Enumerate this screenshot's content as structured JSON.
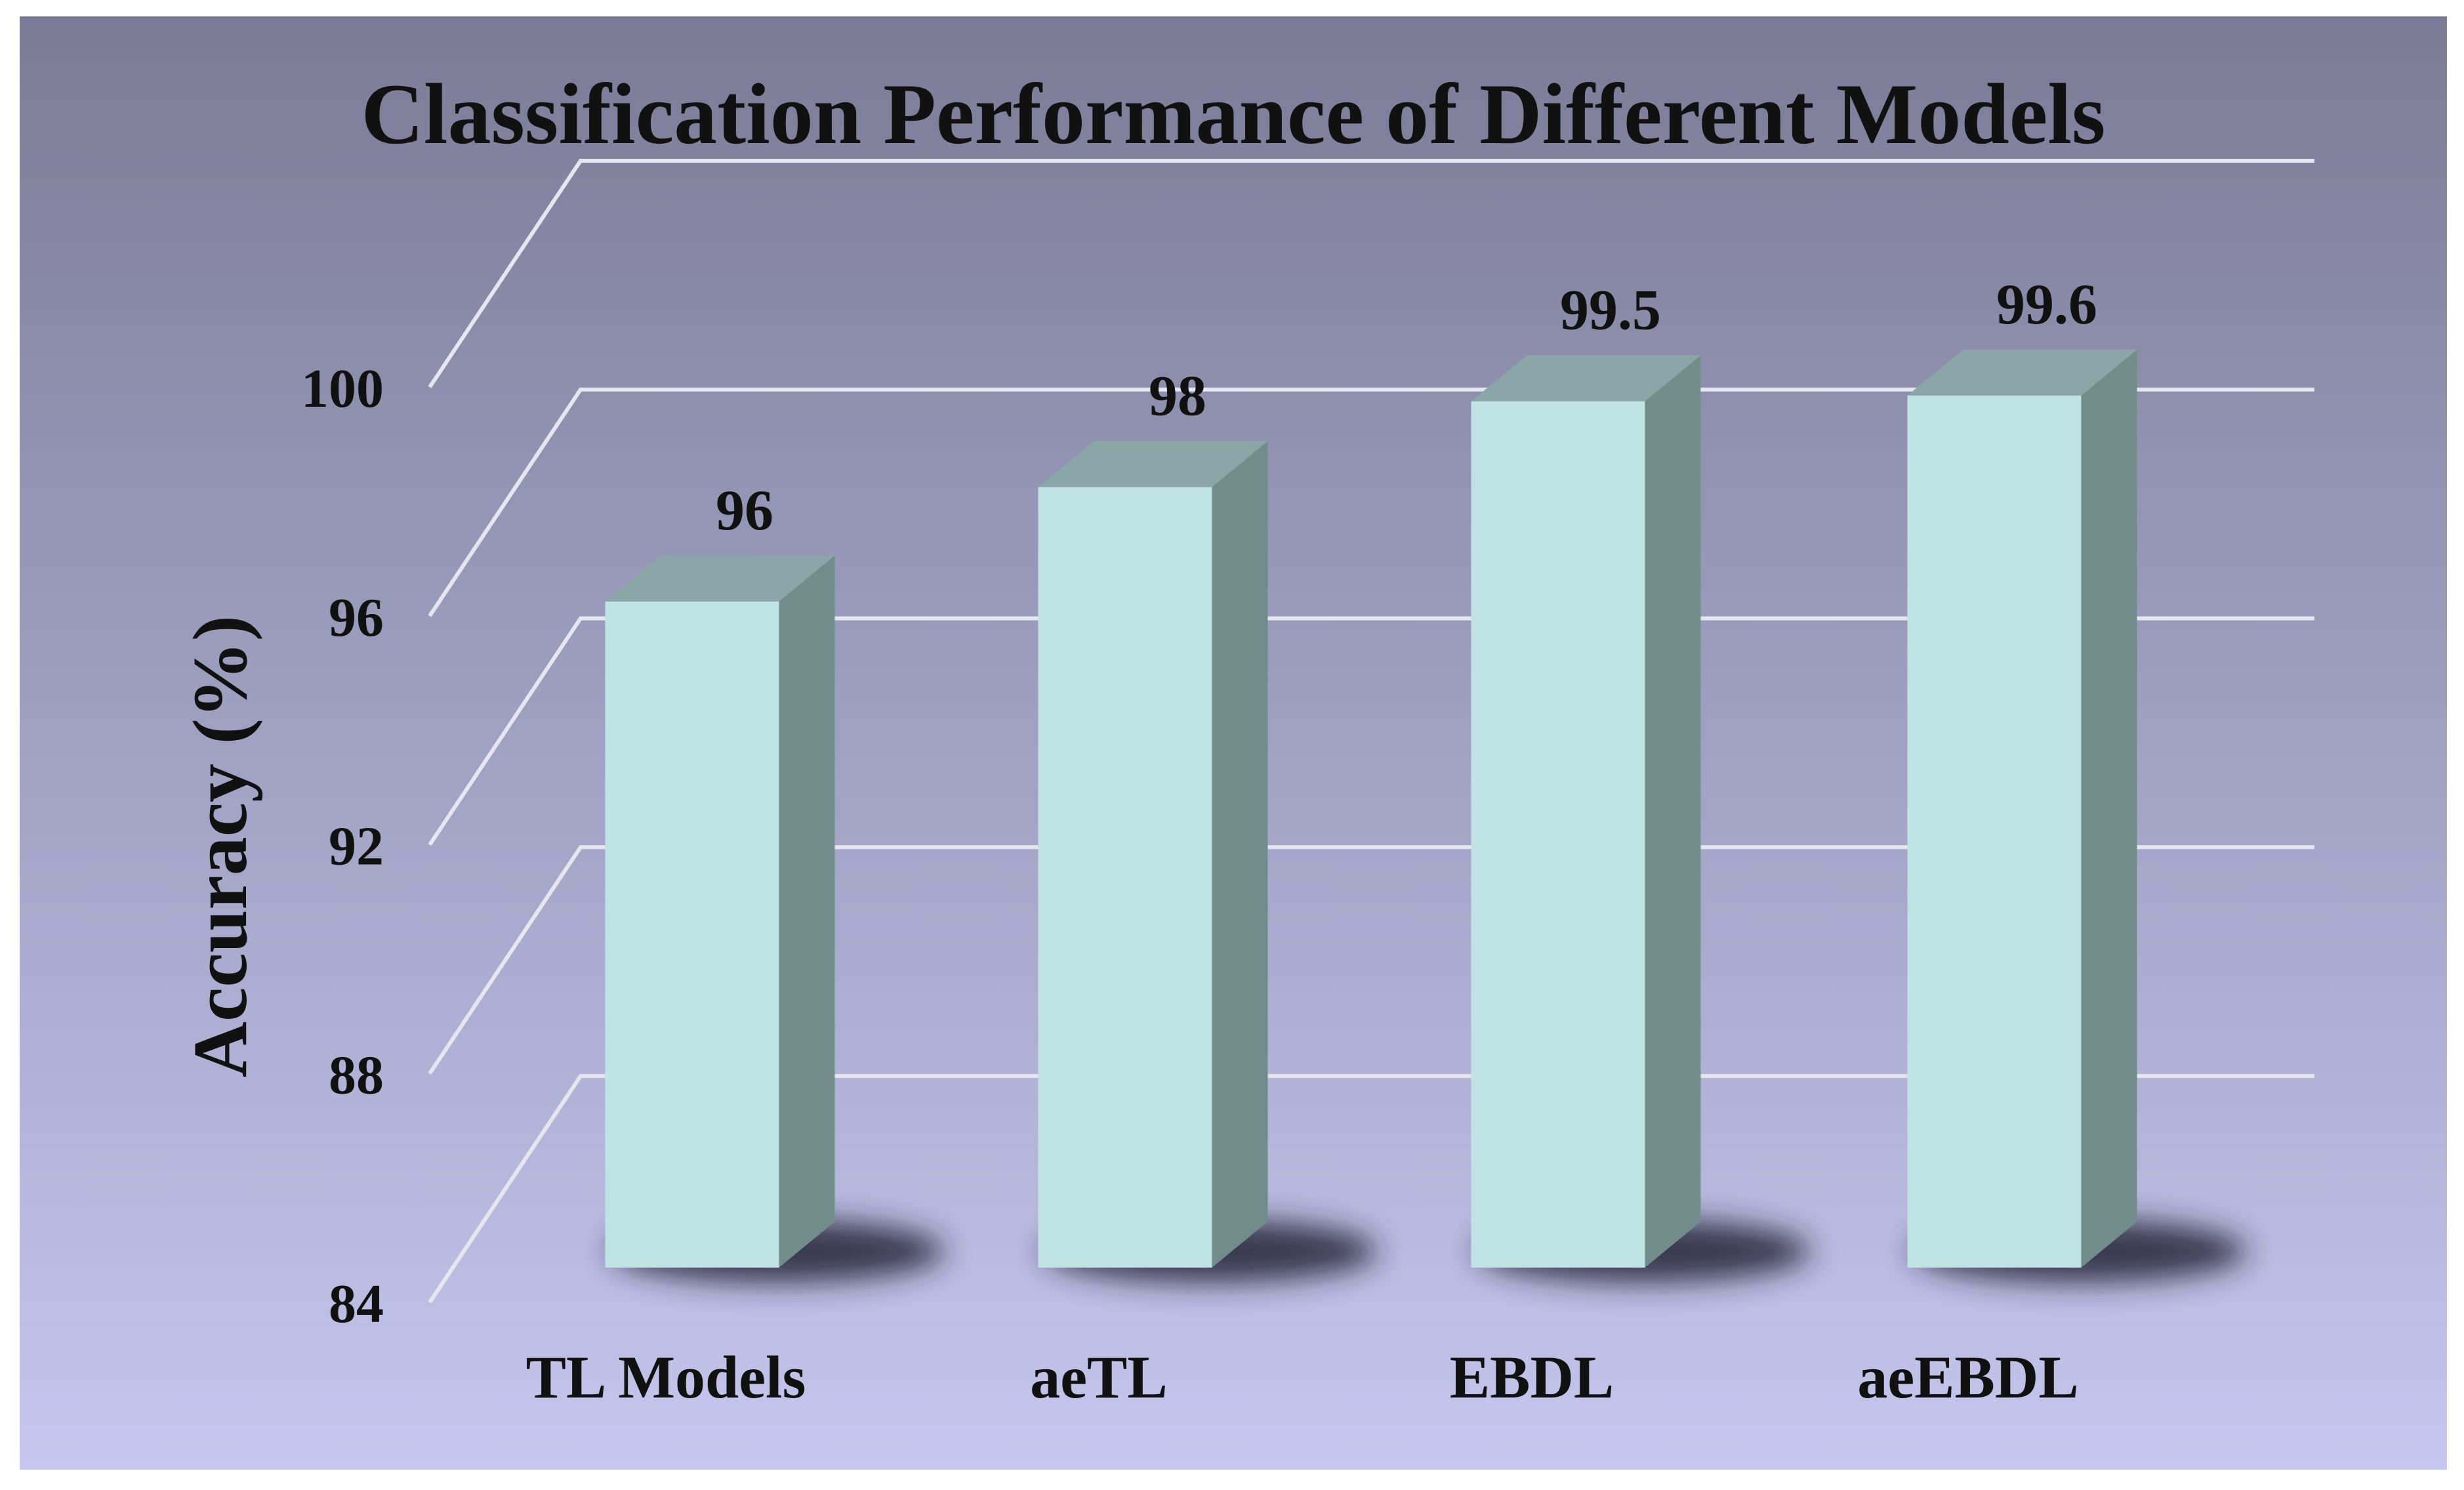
{
  "chart_data": {
    "type": "bar",
    "title": "Classification Performance of Different Models",
    "xlabel": "",
    "ylabel": "Accuracy (%)",
    "categories": [
      "TL Models",
      "aeTL",
      "EBDL",
      "aeEBDL"
    ],
    "values": [
      96,
      98,
      99.5,
      99.6
    ],
    "value_labels": [
      "96",
      "98",
      "99.5",
      "99.6"
    ],
    "ylim": [
      84,
      100
    ],
    "yticks": [
      "84",
      "88",
      "92",
      "96",
      "100"
    ],
    "grid": true,
    "legend": "none",
    "style": "3d-column",
    "colors": {
      "background_top": "#7b7b97",
      "background_bottom": "#c6c6ee",
      "bar_front": "#bfe3e3",
      "bar_side": "#728c8c",
      "bar_top": "#8aa6a6",
      "gridline": "#e6e6f0",
      "text": "#111111"
    }
  }
}
